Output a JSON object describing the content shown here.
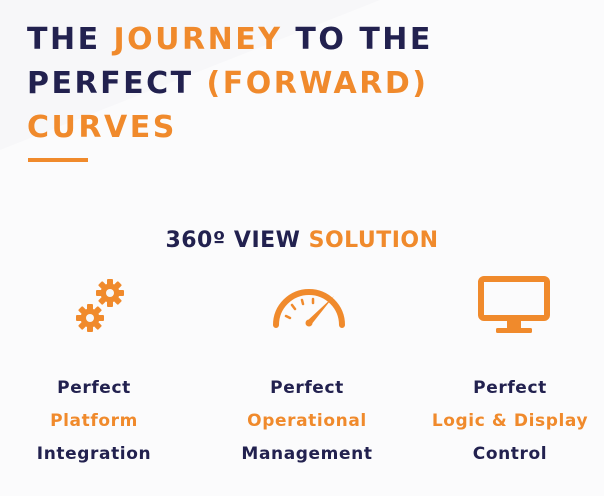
{
  "headline": {
    "line1_a": "THE ",
    "line1_b": "JOURNEY",
    "line1_c": " TO THE",
    "line2_a": "PERFECT ",
    "line2_b": "(FORWARD)",
    "line3": "CURVES"
  },
  "section": {
    "title_a": "360º VIEW ",
    "title_b": "SOLUTION"
  },
  "features": [
    {
      "icon": "gears-icon",
      "line1": "Perfect",
      "line2": "Platform",
      "line3": "Integration"
    },
    {
      "icon": "speedometer-icon",
      "line1": "Perfect",
      "line2": "Operational",
      "line3": "Management"
    },
    {
      "icon": "monitor-icon",
      "line1": "Perfect",
      "line2": "Logic & Display",
      "line3": "Control"
    }
  ],
  "colors": {
    "accent": "#f08a2c",
    "navy": "#22214f",
    "background": "#f7f7f9"
  }
}
